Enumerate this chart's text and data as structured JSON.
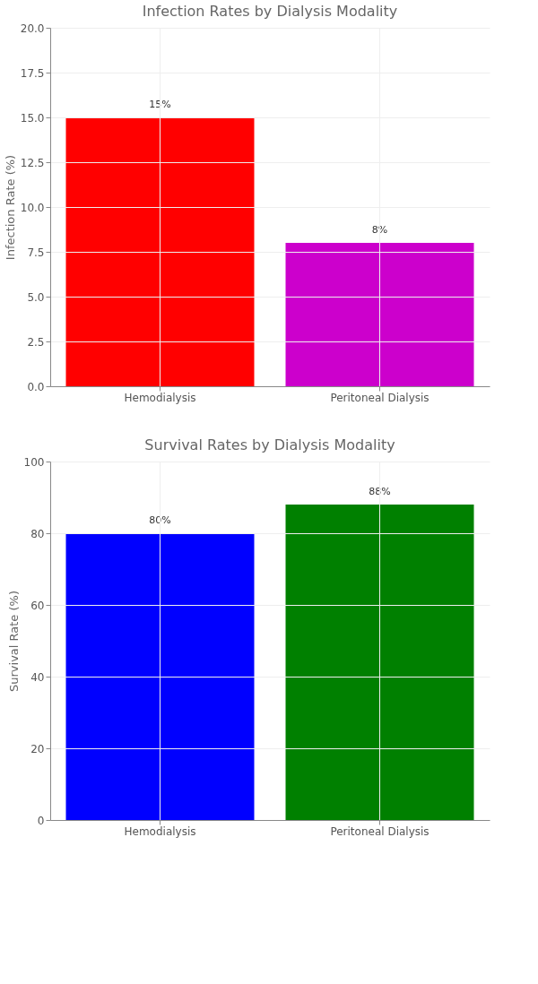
{
  "chart_data": [
    {
      "type": "bar",
      "title": "Infection Rates by Dialysis Modality",
      "ylabel": "Infection Rate (%)",
      "categories": [
        "Hemodialysis",
        "Peritoneal Dialysis"
      ],
      "values": [
        15,
        8
      ],
      "colors": [
        "#ff0000",
        "#cc00cc"
      ],
      "value_labels": [
        "15%",
        "8%"
      ],
      "ylim": [
        0,
        20
      ],
      "yticks": [
        {
          "value": 0,
          "label": "0.0"
        },
        {
          "value": 2.5,
          "label": "2.5"
        },
        {
          "value": 5,
          "label": "5.0"
        },
        {
          "value": 7.5,
          "label": "7.5"
        },
        {
          "value": 10,
          "label": "10.0"
        },
        {
          "value": 12.5,
          "label": "12.5"
        },
        {
          "value": 15,
          "label": "15.0"
        },
        {
          "value": 17.5,
          "label": "17.5"
        },
        {
          "value": 20,
          "label": "20.0"
        }
      ],
      "grid": true
    },
    {
      "type": "bar",
      "title": "Survival Rates by Dialysis Modality",
      "ylabel": "Survival Rate (%)",
      "categories": [
        "Hemodialysis",
        "Peritoneal Dialysis"
      ],
      "values": [
        80,
        88
      ],
      "colors": [
        "#0000ff",
        "#008000"
      ],
      "value_labels": [
        "80%",
        "88%"
      ],
      "ylim": [
        0,
        100
      ],
      "yticks": [
        0,
        20,
        40,
        60,
        80,
        100
      ],
      "grid": true
    }
  ]
}
